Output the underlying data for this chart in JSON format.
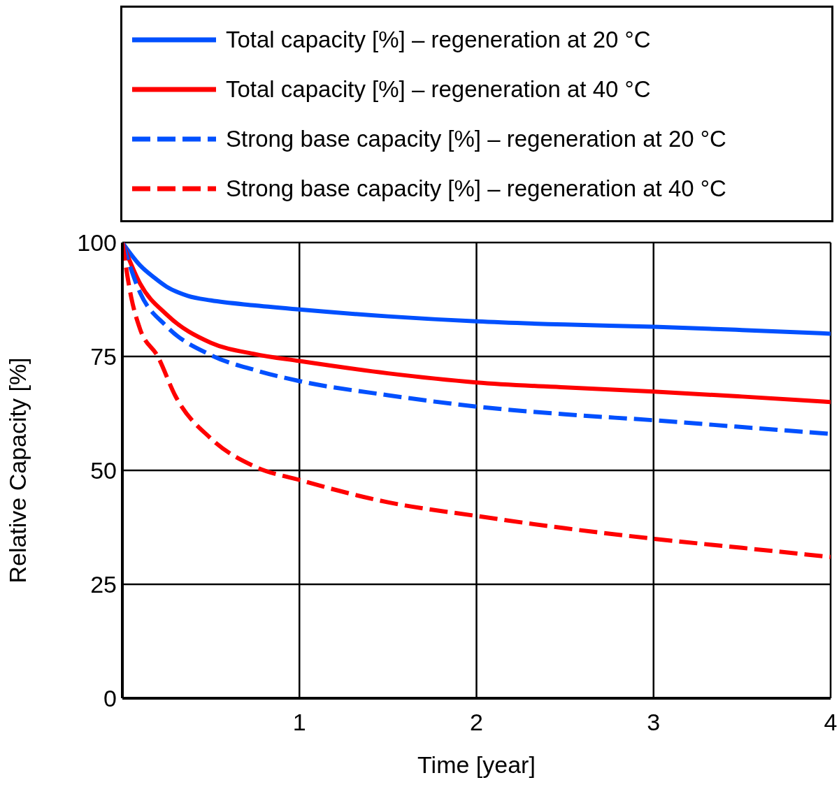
{
  "chart_data": {
    "type": "line",
    "xlabel": "Time [year]",
    "ylabel": "Relative Capacity [%]",
    "xlim": [
      0,
      4
    ],
    "xticks": [
      1,
      2,
      3,
      4
    ],
    "ylim": [
      0,
      100
    ],
    "yticks": [
      0,
      25,
      50,
      75,
      100
    ],
    "grid": true,
    "legend": "top",
    "marker": "none",
    "series": [
      {
        "name": "Total capacity [%] – regeneration at 20 °C",
        "color": "#0050ff",
        "line_style": "solid",
        "x": [
          0,
          0.1,
          0.18,
          0.25,
          0.37,
          0.5,
          0.75,
          1,
          1.5,
          2,
          2.5,
          3,
          3.5,
          4
        ],
        "values": [
          100,
          95,
          92.3,
          90.3,
          88.3,
          87.3,
          86.2,
          85.3,
          83.8,
          82.7,
          82,
          81.5,
          80.8,
          80
        ]
      },
      {
        "name": "Total capacity [%] – regeneration at 40 °C",
        "color": "#ff0000",
        "line_style": "solid",
        "x": [
          0,
          0.1,
          0.25,
          0.5,
          0.75,
          1,
          1.5,
          2,
          2.5,
          3,
          3.5,
          4
        ],
        "values": [
          100,
          91,
          84.2,
          78,
          75.5,
          74,
          71.3,
          69.3,
          68.2,
          67.3,
          66.2,
          65
        ]
      },
      {
        "name": "Strong base capacity [%] – regeneration at 20 °C",
        "color": "#0050ff",
        "line_style": "dashed",
        "x": [
          0,
          0.1,
          0.25,
          0.5,
          0.75,
          1,
          1.5,
          2,
          2.5,
          3,
          3.5,
          4
        ],
        "values": [
          100,
          89,
          81.6,
          75.3,
          72,
          69.6,
          66.5,
          64,
          62.3,
          61,
          59.5,
          58
        ]
      },
      {
        "name": "Strong base capacity [%] – regeneration at 40 °C",
        "color": "#ff0000",
        "line_style": "dashed",
        "x": [
          0,
          0.05,
          0.1,
          0.2,
          0.3,
          0.5,
          0.75,
          1,
          1.5,
          2,
          2.5,
          3,
          3.5,
          4
        ],
        "values": [
          100,
          88,
          81,
          75,
          66.3,
          57,
          50.8,
          47.9,
          43,
          40,
          37.3,
          35,
          33,
          31
        ]
      }
    ]
  }
}
